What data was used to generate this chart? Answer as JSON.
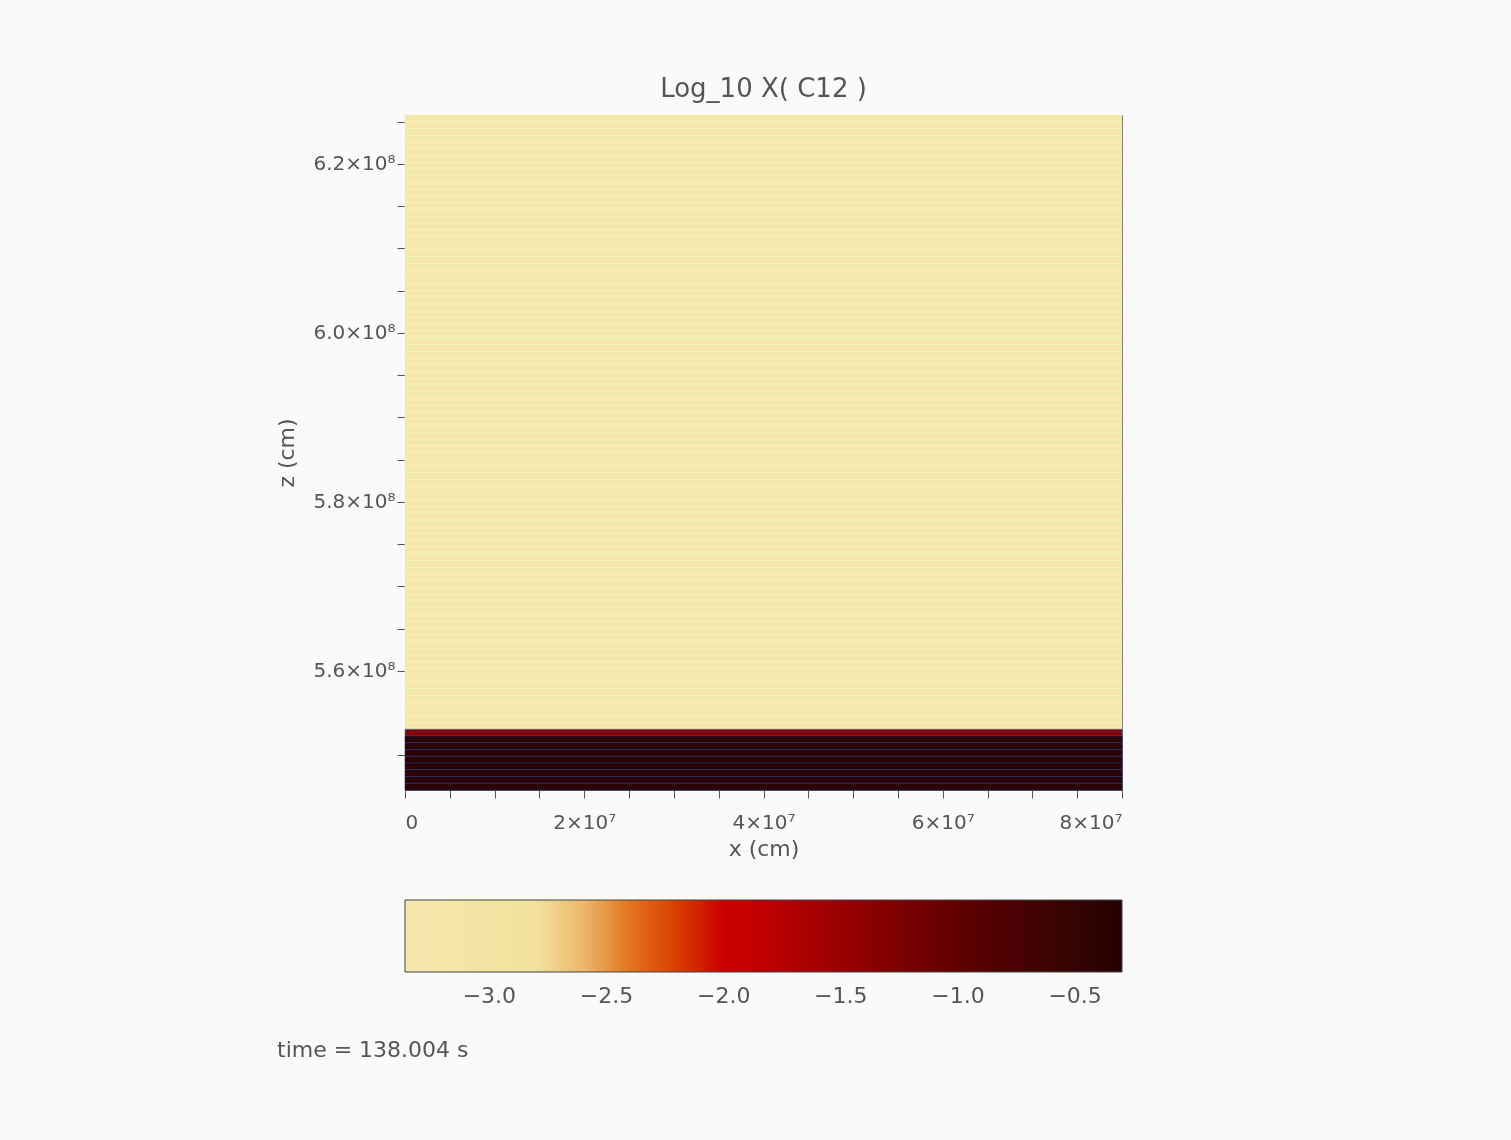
{
  "chart_data": {
    "type": "heatmap",
    "title": "Log_10  X( C12 )",
    "xlabel": "x (cm)",
    "ylabel": "z (cm)",
    "annotations": [
      "time = 138.004 s"
    ],
    "xlim": [
      0,
      80000000
    ],
    "xticks": [
      {
        "value": 0,
        "label": "0"
      },
      {
        "value": 5000000,
        "label": null
      },
      {
        "value": 10000000,
        "label": null
      },
      {
        "value": 15000000,
        "label": null
      },
      {
        "value": 20000000,
        "label": "2×10⁷"
      },
      {
        "value": 25000000,
        "label": null
      },
      {
        "value": 30000000,
        "label": null
      },
      {
        "value": 35000000,
        "label": null
      },
      {
        "value": 40000000,
        "label": "4×10⁷"
      },
      {
        "value": 45000000,
        "label": null
      },
      {
        "value": 50000000,
        "label": null
      },
      {
        "value": 55000000,
        "label": null
      },
      {
        "value": 60000000,
        "label": "6×10⁷"
      },
      {
        "value": 65000000,
        "label": null
      },
      {
        "value": 70000000,
        "label": null
      },
      {
        "value": 75000000,
        "label": null
      },
      {
        "value": 80000000,
        "label": "8×10⁷"
      }
    ],
    "ylim": [
      545900000,
      625800000
    ],
    "yticks": [
      {
        "value": 550000000,
        "label": null
      },
      {
        "value": 560000000,
        "label": "5.6×10⁸"
      },
      {
        "value": 570000000,
        "label": null
      },
      {
        "value": 575000000,
        "label": null
      },
      {
        "value": 565000000,
        "label": null
      },
      {
        "value": 580000000,
        "label": "5.8×10⁸"
      },
      {
        "value": 585000000,
        "label": null
      },
      {
        "value": 590000000,
        "label": null
      },
      {
        "value": 595000000,
        "label": null
      },
      {
        "value": 600000000,
        "label": "6.0×10⁸"
      },
      {
        "value": 605000000,
        "label": null
      },
      {
        "value": 610000000,
        "label": null
      },
      {
        "value": 615000000,
        "label": null
      },
      {
        "value": 620000000,
        "label": "6.2×10⁸"
      },
      {
        "value": 625000000,
        "label": null
      }
    ],
    "cells": [
      [
        -3.3
      ],
      [
        -3.3
      ],
      [
        -3.3
      ],
      [
        -3.3
      ],
      [
        -3.3
      ],
      [
        -3.3
      ],
      [
        -3.3
      ],
      [
        -3.3
      ],
      [
        -3.3
      ],
      [
        -3.3
      ],
      [
        -3.3
      ],
      [
        -3.3
      ],
      [
        -3.3
      ],
      [
        -3.3
      ],
      [
        -3.3
      ],
      [
        -3.3
      ],
      [
        -3.3
      ],
      [
        -3.3
      ],
      [
        -3.3
      ],
      [
        -3.3
      ],
      [
        -3.3
      ],
      [
        -3.3
      ],
      [
        -3.3
      ],
      [
        -3.3
      ],
      [
        -3.3
      ],
      [
        -3.3
      ],
      [
        -3.3
      ],
      [
        -3.3
      ],
      [
        -3.3
      ],
      [
        -3.3
      ],
      [
        -3.3
      ],
      [
        -3.3
      ],
      [
        -3.3
      ],
      [
        -3.3
      ],
      [
        -3.3
      ],
      [
        -3.3
      ],
      [
        -3.3
      ],
      [
        -3.3
      ],
      [
        -3.3
      ],
      [
        -3.3
      ],
      [
        -3.3
      ],
      [
        -3.3
      ],
      [
        -3.3
      ],
      [
        -3.3
      ],
      [
        -3.3
      ],
      [
        -3.3
      ],
      [
        -3.3
      ],
      [
        -3.3
      ],
      [
        -3.3
      ],
      [
        -3.3
      ],
      [
        -3.3
      ],
      [
        -3.3
      ],
      [
        -3.3
      ],
      [
        -3.3
      ],
      [
        -3.3
      ],
      [
        -3.3
      ],
      [
        -3.3
      ],
      [
        -3.3
      ],
      [
        -3.3
      ],
      [
        -3.3
      ],
      [
        -3.3
      ],
      [
        -3.3
      ],
      [
        -3.3
      ],
      [
        -3.3
      ],
      [
        -3.3
      ],
      [
        -3.3
      ],
      [
        -3.3
      ],
      [
        -3.3
      ],
      [
        -3.3
      ],
      [
        -3.3
      ],
      [
        -3.3
      ],
      [
        -3.3
      ],
      [
        -3.3
      ],
      [
        -3.3
      ],
      [
        -3.3
      ],
      [
        -3.3
      ],
      [
        -3.3
      ],
      [
        -3.3
      ],
      [
        -3.3
      ],
      [
        -3.3
      ],
      [
        -3.3
      ],
      [
        -3.3
      ],
      [
        -3.3
      ],
      [
        -3.3
      ],
      [
        -3.3
      ],
      [
        -3.3
      ],
      [
        -3.3
      ],
      [
        -3.3
      ],
      [
        -3.3
      ],
      [
        -3.3
      ],
      [
        -3.3
      ],
      [
        -1.3
      ],
      [
        -0.35
      ],
      [
        -0.35
      ],
      [
        -0.35
      ],
      [
        -0.35
      ],
      [
        -0.35
      ],
      [
        -0.35
      ],
      [
        -0.35
      ],
      [
        -0.35
      ]
    ],
    "clim": [
      -3.36,
      -0.3
    ],
    "cticks": [
      {
        "value": -3,
        "label": "−3.0"
      },
      {
        "value": -2.5,
        "label": "−2.5"
      },
      {
        "value": -2,
        "label": "−2.0"
      },
      {
        "value": -1.5,
        "label": "−1.5"
      },
      {
        "value": -1,
        "label": "−1.0"
      },
      {
        "value": -0.5,
        "label": "−0.5"
      }
    ],
    "grid": false
  }
}
